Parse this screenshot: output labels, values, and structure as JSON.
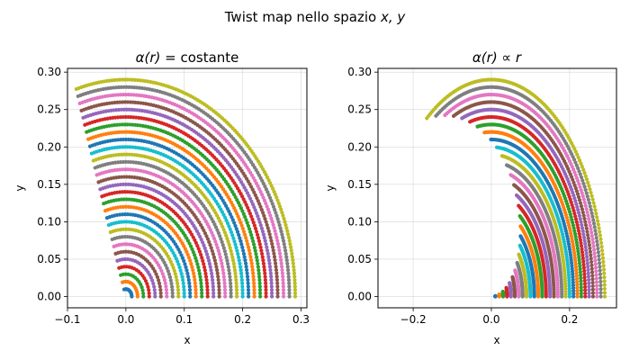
{
  "figure": {
    "title_prefix": "Twist map nello spazio ",
    "title_vars": "x, y"
  },
  "series_colors": [
    "#1f77b4",
    "#ff7f0e",
    "#2ca02c",
    "#d62728",
    "#9467bd",
    "#8c564b",
    "#e377c2",
    "#7f7f7f",
    "#bcbd22",
    "#17becf"
  ],
  "chart_data": [
    {
      "type": "scatter",
      "title_math": "α(r) = ",
      "title_text": "costante",
      "xlabel": "x",
      "ylabel": "y",
      "xlim": [
        -0.1,
        0.31
      ],
      "ylim": [
        -0.015,
        0.305
      ],
      "xticks": [
        -0.1,
        0.0,
        0.1,
        0.2,
        0.3
      ],
      "xtick_labels": [
        "−0.1",
        "0.0",
        "0.1",
        "0.2",
        "0.3"
      ],
      "yticks": [
        0.0,
        0.05,
        0.1,
        0.15,
        0.2,
        0.25,
        0.3
      ],
      "ytick_labels": [
        "0.00",
        "0.05",
        "0.10",
        "0.15",
        "0.20",
        "0.25",
        "0.30"
      ],
      "grid": true,
      "model": "constant",
      "ring_radii": [
        0.01,
        0.02,
        0.03,
        0.04,
        0.05,
        0.06,
        0.07,
        0.08,
        0.09,
        0.1,
        0.11,
        0.12,
        0.13,
        0.14,
        0.15,
        0.16,
        0.17,
        0.18,
        0.19,
        0.2,
        0.21,
        0.22,
        0.23,
        0.24,
        0.25,
        0.26,
        0.27,
        0.28,
        0.29
      ],
      "angle_range_deg": [
        0,
        107
      ]
    },
    {
      "type": "scatter",
      "title_math": "α(r) ∝ r",
      "title_text": "",
      "xlabel": "x",
      "ylabel": "y",
      "xlim": [
        -0.29,
        0.32
      ],
      "ylim": [
        -0.015,
        0.305
      ],
      "xticks": [
        -0.2,
        0.0,
        0.2
      ],
      "xtick_labels": [
        "−0.2",
        "0.0",
        "0.2"
      ],
      "yticks": [
        0.0,
        0.05,
        0.1,
        0.15,
        0.2,
        0.25,
        0.3
      ],
      "ytick_labels": [
        "0.00",
        "0.05",
        "0.10",
        "0.15",
        "0.20",
        "0.25",
        "0.30"
      ],
      "grid": true,
      "model": "proportional",
      "ring_radii": [
        0.01,
        0.02,
        0.03,
        0.04,
        0.05,
        0.06,
        0.07,
        0.08,
        0.09,
        0.1,
        0.11,
        0.12,
        0.13,
        0.14,
        0.15,
        0.16,
        0.17,
        0.18,
        0.19,
        0.2,
        0.21,
        0.22,
        0.23,
        0.24,
        0.25,
        0.26,
        0.27,
        0.28,
        0.29
      ],
      "max_angle_deg_per_unit_r": 430
    }
  ]
}
